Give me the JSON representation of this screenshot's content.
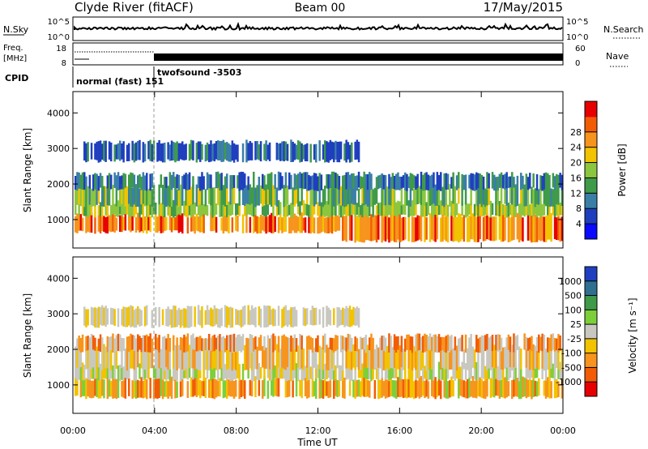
{
  "header": {
    "station": "Clyde River (fitACF)",
    "beam": "Beam 00",
    "date": "17/May/2015"
  },
  "strips": {
    "nsky": {
      "label": "N.Sky",
      "ticks": [
        "10^5",
        "10^0"
      ]
    },
    "nsearch": {
      "label": "N.Search",
      "ticks": [
        "10^5",
        "10^0"
      ]
    },
    "freq": {
      "label_top": "Freq.",
      "label_bottom": "[MHz]",
      "ticks": [
        "18",
        "8"
      ]
    },
    "nave": {
      "label": "Nave",
      "ticks": [
        "60",
        "0"
      ]
    },
    "cpid": {
      "label": "CPID",
      "modes": [
        "normal (fast) 151",
        "twofsound -3503"
      ]
    }
  },
  "chart_data": [
    {
      "type": "heatmap",
      "panel": "power",
      "ylabel": "Slant Range [km]",
      "yticks": [
        "1000",
        "2000",
        "3000",
        "4000"
      ],
      "ylim": [
        200,
        4600
      ],
      "xlim": [
        0,
        24
      ],
      "xticks": [
        "00:00",
        "04:00",
        "08:00",
        "12:00",
        "16:00",
        "20:00",
        "00:00"
      ],
      "colorbar": {
        "label": "Power [dB]",
        "ticks": [
          "4",
          "8",
          "12",
          "16",
          "20",
          "24",
          "28"
        ],
        "colors": [
          "#0a0aff",
          "#1f3fbf",
          "#3a7fa6",
          "#3f9a4a",
          "#8cc63f",
          "#f2c300",
          "#f7941d",
          "#f25c05",
          "#e60000"
        ]
      }
    },
    {
      "type": "heatmap",
      "panel": "velocity",
      "ylabel": "Slant Range [km]",
      "yticks": [
        "1000",
        "2000",
        "3000",
        "4000"
      ],
      "ylim": [
        200,
        4600
      ],
      "xlim": [
        0,
        24
      ],
      "xticks": [
        "00:00",
        "04:00",
        "08:00",
        "12:00",
        "16:00",
        "20:00",
        "00:00"
      ],
      "xlabel": "Time UT",
      "colorbar": {
        "label": "Velocity [m s⁻¹]",
        "ticks": [
          "1000",
          "500",
          "100",
          "25",
          "-25",
          "-100",
          "-500",
          "-1000"
        ],
        "colors": [
          "#1f3fbf",
          "#2f6f8f",
          "#3f9a4a",
          "#7dcf3a",
          "#c8c8c0",
          "#f2c300",
          "#f7941d",
          "#f25c05",
          "#e60000"
        ]
      }
    }
  ]
}
